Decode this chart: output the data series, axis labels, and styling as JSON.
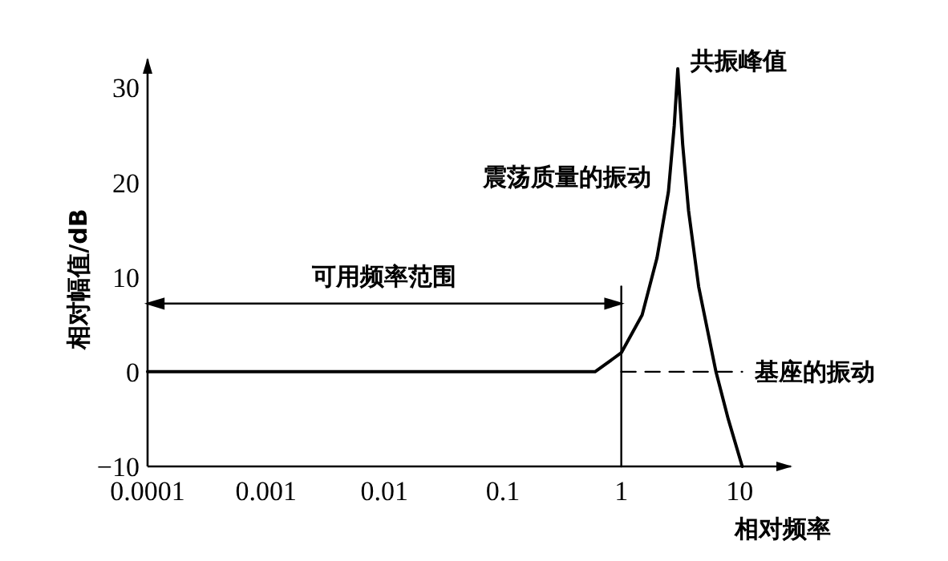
{
  "chart_data": {
    "type": "line",
    "xlabel": "相对频率",
    "ylabel": "相对幅值/dB",
    "log": "x",
    "xlim": [
      0.0001,
      27
    ],
    "ylim": [
      -10,
      33
    ],
    "xticks": [
      {
        "value": 0.0001,
        "label": "0.0001"
      },
      {
        "value": 0.001,
        "label": "0.001"
      },
      {
        "value": 0.01,
        "label": "0.01"
      },
      {
        "value": 0.1,
        "label": "0.1"
      },
      {
        "value": 1,
        "label": "1"
      },
      {
        "value": 10,
        "label": "10"
      }
    ],
    "yticks": [
      -10,
      0,
      10,
      20,
      30
    ],
    "series": [
      {
        "color": "#000000",
        "x": [
          0.0001,
          0.6,
          1,
          1.5,
          2,
          2.5,
          2.8,
          3,
          3.3,
          3.7,
          4.5,
          6.3,
          8,
          10.5
        ],
        "values": [
          0,
          0,
          2,
          6,
          12,
          19,
          26,
          32,
          24,
          17,
          9,
          0,
          -5,
          -10
        ]
      },
      {
        "color": "#000000",
        "line_style": "dashed",
        "x": [
          1,
          10.5
        ],
        "values": [
          0,
          0
        ]
      },
      {
        "color": "#000000",
        "x": [
          1,
          1
        ],
        "values": [
          -10,
          9
        ]
      }
    ],
    "annotations": [
      "可用频率范围",
      {
        "text": "共振峰值",
        "x": 3,
        "y": 32
      },
      {
        "text": "震荡质量的振动",
        "x": 2.3,
        "y": 17
      },
      {
        "text": "基座的振动",
        "x": 10.5,
        "y": 0
      }
    ]
  }
}
